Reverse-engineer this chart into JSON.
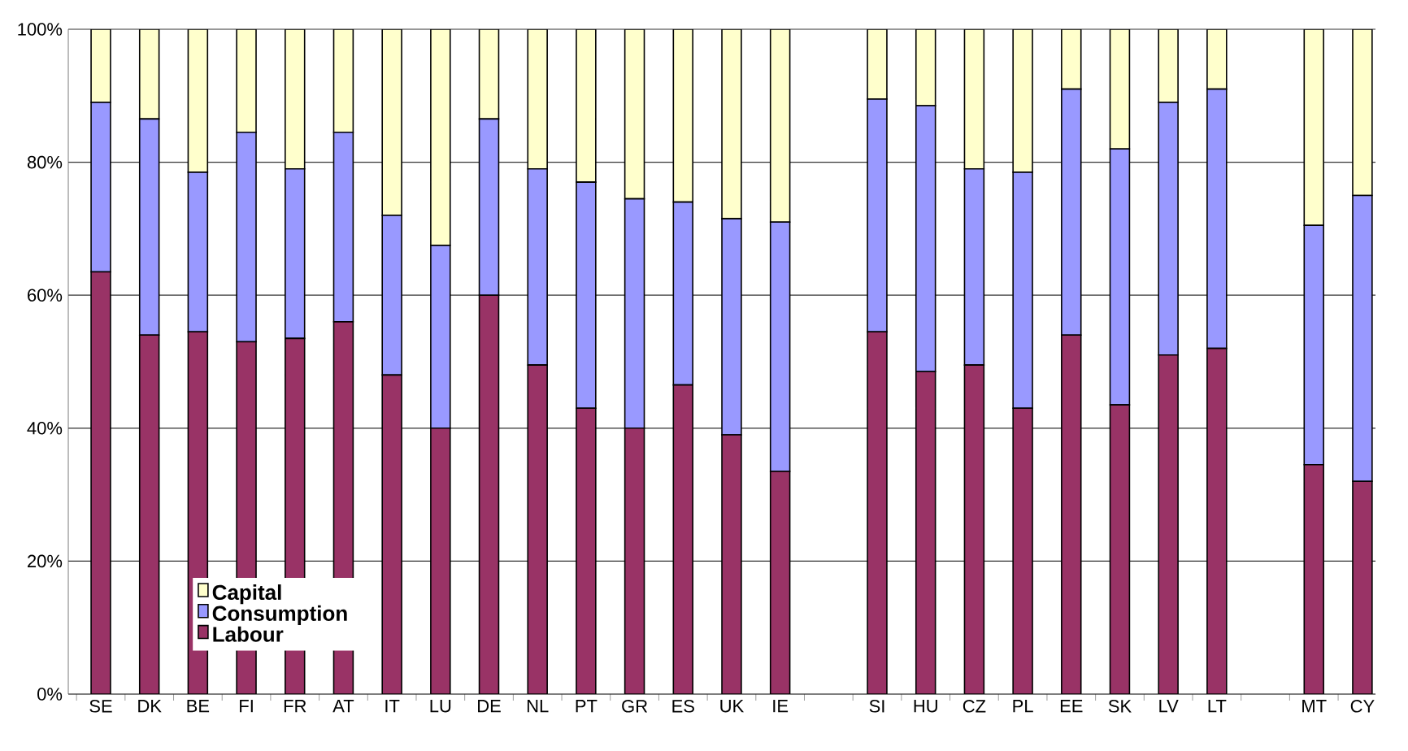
{
  "chart_data": {
    "type": "bar",
    "stacked": true,
    "categories": [
      "SE",
      "DK",
      "BE",
      "FI",
      "FR",
      "AT",
      "IT",
      "LU",
      "DE",
      "NL",
      "PT",
      "GR",
      "ES",
      "UK",
      "IE",
      null,
      "SI",
      "HU",
      "CZ",
      "PL",
      "EE",
      "SK",
      "LV",
      "LT",
      null,
      "MT",
      "CY"
    ],
    "series": [
      {
        "name": "Labour",
        "color": "#993366",
        "values": [
          63.5,
          54,
          54.5,
          53,
          53.5,
          56,
          48,
          40,
          60,
          49.5,
          43,
          40,
          46.5,
          39,
          33.5,
          null,
          54.5,
          48.5,
          49.5,
          43,
          54,
          43.5,
          51,
          52,
          null,
          34.5,
          32
        ]
      },
      {
        "name": "Consumption",
        "color": "#9999ff",
        "values": [
          25.5,
          32.5,
          24,
          31.5,
          25.5,
          28.5,
          24,
          27.5,
          26.5,
          29.5,
          34,
          34.5,
          27.5,
          32.5,
          37.5,
          null,
          35,
          40,
          29.5,
          35.5,
          37,
          38.5,
          38,
          39,
          null,
          36,
          43
        ]
      },
      {
        "name": "Capital",
        "color": "#ffffcc",
        "values": [
          11,
          13.5,
          21.5,
          15.5,
          21,
          15.5,
          28,
          32.5,
          13.5,
          21,
          23,
          25.5,
          26,
          28.5,
          29,
          null,
          10.5,
          11.5,
          21,
          21.5,
          9,
          18,
          11,
          9,
          null,
          29.5,
          25
        ]
      }
    ],
    "ylim": [
      0,
      100
    ],
    "yticks": [
      {
        "value": 0,
        "label": "0%"
      },
      {
        "value": 20,
        "label": "20%"
      },
      {
        "value": 40,
        "label": "40%"
      },
      {
        "value": 60,
        "label": "60%"
      },
      {
        "value": 80,
        "label": "80%"
      },
      {
        "value": 100,
        "label": "100%"
      }
    ],
    "grid": "y",
    "legend": "bottom left"
  }
}
